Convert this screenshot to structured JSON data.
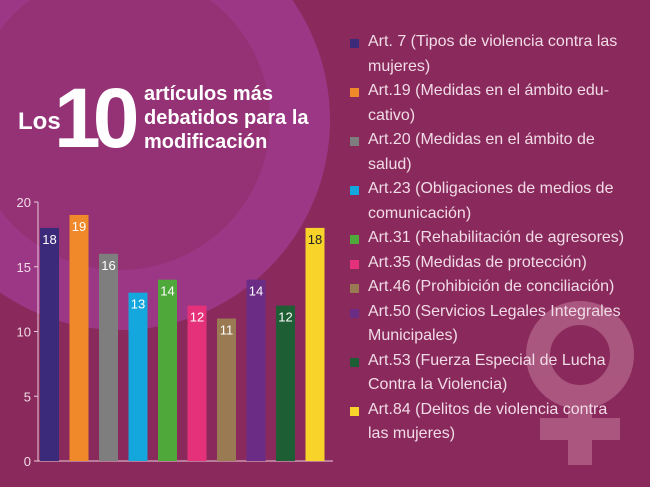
{
  "title": {
    "prefix": "Los",
    "number": "10",
    "rest": "artículos más debatidos para la modificación"
  },
  "chart_data": {
    "type": "bar",
    "categories": [
      "Art. 7",
      "Art.19",
      "Art.20",
      "Art.23",
      "Art.31",
      "Art.35",
      "Art.46",
      "Art.50",
      "Art.53",
      "Art.84"
    ],
    "values": [
      18,
      19,
      16,
      13,
      14,
      12,
      11,
      14,
      12,
      18
    ],
    "colors": [
      "#3b2a7a",
      "#f0892a",
      "#7e7e7e",
      "#14a7dd",
      "#4fa83a",
      "#e5317a",
      "#9a7a52",
      "#6b2c86",
      "#1d5e34",
      "#f8d42a"
    ],
    "ylim": [
      0,
      20
    ],
    "yticks": [
      0,
      5,
      10,
      15,
      20
    ],
    "grid": false,
    "legend_position": "right",
    "legend": [
      "Art. 7 (Tipos de violencia contra las mujeres)",
      "Art.19 (Medidas en el ámbito educativo)",
      "Art.20 (Medidas en el ámbito de salud)",
      "Art.23 (Obligaciones de medios de comunicación)",
      "Art.31 (Rehabilitación de agresores)",
      "Art.35 (Medidas de protección)",
      "Art.46 (Prohibición de conciliación)",
      "Art.50 (Servicios Legales Integrales Municipales)",
      "Art.53 (Fuerza Especial de Lucha Contra la Violencia)",
      "Art.84 (Delitos de violencia contra las mujeres)"
    ]
  },
  "legend_lines": [
    [
      "Art. 7 (Tipos de violencia contra las",
      "mujeres)"
    ],
    [
      "Art.19 (Medidas en el ámbito edu-",
      "cativo)"
    ],
    [
      "Art.20 (Medidas en el ámbito de",
      "salud)"
    ],
    [
      "Art.23 (Obligaciones de medios de",
      "comunicación)"
    ],
    [
      "Art.31 (Rehabilitación de agresores)"
    ],
    [
      "Art.35 (Medidas de protección)"
    ],
    [
      "Art.46 (Prohibición de conciliación)"
    ],
    [
      "Art.50 (Servicios Legales Integrales",
      "Municipales)"
    ],
    [
      "Art.53 (Fuerza Especial de Lucha",
      "Contra la Violencia)"
    ],
    [
      "Art.84 (Delitos de violencia contra",
      "las mujeres)"
    ]
  ],
  "colors": {
    "background": "#8a2a5c",
    "circle": "#9e3a8c",
    "female_symbol": "#b0587f",
    "text": "#ffffff",
    "legend_text": "#f1dbe6"
  },
  "icons": {
    "decoration": "female-symbol-icon"
  }
}
